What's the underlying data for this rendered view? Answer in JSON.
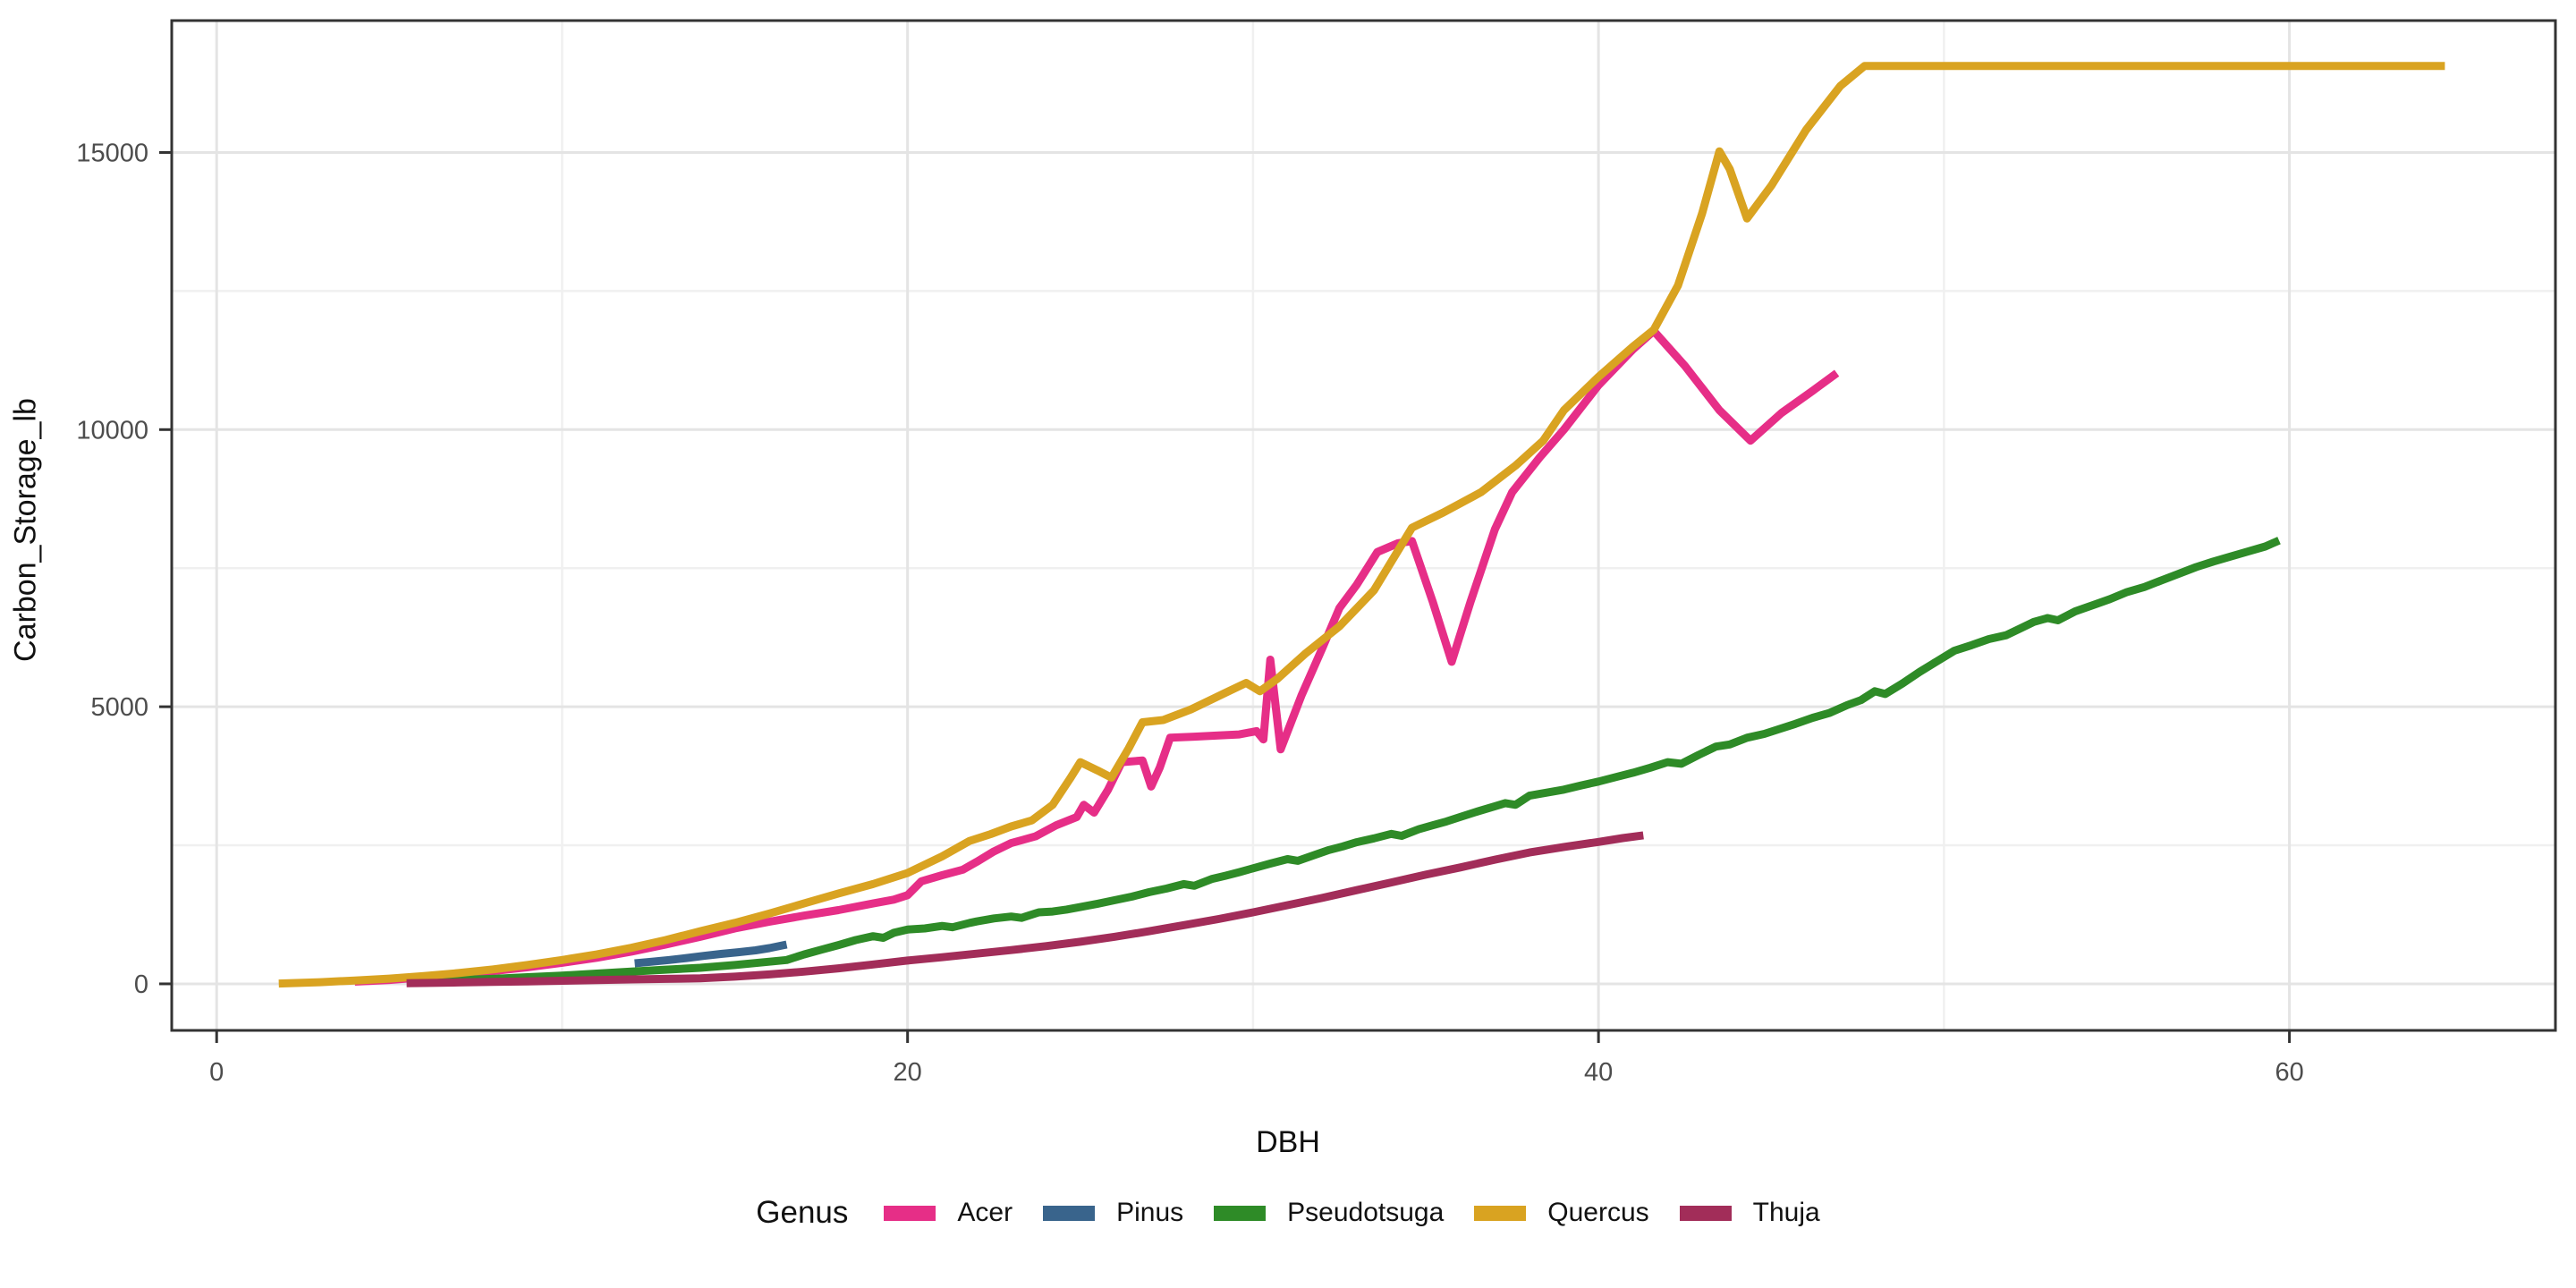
{
  "chart_data": {
    "type": "line",
    "title": "",
    "xlabel": "DBH",
    "ylabel": "Carbon_Storage_lb",
    "legend_title": "Genus",
    "legend_position": "bottom",
    "grid": true,
    "xlim": [
      -1.3,
      67.7
    ],
    "ylim": [
      -840,
      17380
    ],
    "x_ticks": [
      0,
      20,
      40,
      60
    ],
    "x_minor_ticks": [
      10,
      30,
      50
    ],
    "y_ticks": [
      0,
      5000,
      10000,
      15000
    ],
    "y_minor_ticks": [
      2500,
      7500,
      12500
    ],
    "series": [
      {
        "name": "Acer",
        "color": "#E62E87",
        "points": [
          [
            4,
            40
          ],
          [
            5,
            70
          ],
          [
            6,
            120
          ],
          [
            7,
            170
          ],
          [
            8,
            230
          ],
          [
            9,
            300
          ],
          [
            10,
            380
          ],
          [
            11,
            470
          ],
          [
            12,
            580
          ],
          [
            13,
            710
          ],
          [
            14,
            850
          ],
          [
            15,
            1000
          ],
          [
            16,
            1120
          ],
          [
            17,
            1230
          ],
          [
            18,
            1330
          ],
          [
            19,
            1450
          ],
          [
            19.6,
            1520
          ],
          [
            20,
            1600
          ],
          [
            20.4,
            1850
          ],
          [
            21,
            1960
          ],
          [
            21.6,
            2060
          ],
          [
            22,
            2200
          ],
          [
            22.5,
            2390
          ],
          [
            23,
            2540
          ],
          [
            23.7,
            2660
          ],
          [
            24.3,
            2860
          ],
          [
            24.9,
            3010
          ],
          [
            25.1,
            3230
          ],
          [
            25.4,
            3090
          ],
          [
            25.8,
            3500
          ],
          [
            26.2,
            4000
          ],
          [
            26.8,
            4030
          ],
          [
            27.05,
            3560
          ],
          [
            27.3,
            3900
          ],
          [
            27.6,
            4440
          ],
          [
            28.3,
            4460
          ],
          [
            29,
            4480
          ],
          [
            29.6,
            4500
          ],
          [
            30.1,
            4560
          ],
          [
            30.3,
            4410
          ],
          [
            30.5,
            5850
          ],
          [
            30.8,
            4230
          ],
          [
            31.4,
            5200
          ],
          [
            32,
            6050
          ],
          [
            32.5,
            6780
          ],
          [
            33,
            7200
          ],
          [
            33.6,
            7790
          ],
          [
            34.2,
            7950
          ],
          [
            34.6,
            7990
          ],
          [
            35.2,
            6900
          ],
          [
            35.75,
            5810
          ],
          [
            36.3,
            6900
          ],
          [
            37,
            8200
          ],
          [
            37.5,
            8870
          ],
          [
            38.3,
            9500
          ],
          [
            39,
            10000
          ],
          [
            40,
            10800
          ],
          [
            41,
            11450
          ],
          [
            41.6,
            11780
          ],
          [
            42.5,
            11150
          ],
          [
            43.5,
            10350
          ],
          [
            44.4,
            9800
          ],
          [
            45.3,
            10300
          ],
          [
            46.2,
            10700
          ],
          [
            46.9,
            11020
          ]
        ]
      },
      {
        "name": "Pinus",
        "color": "#39648C",
        "points": [
          [
            12.1,
            370
          ],
          [
            12.6,
            400
          ],
          [
            13.1,
            430
          ],
          [
            13.6,
            465
          ],
          [
            14.1,
            505
          ],
          [
            14.6,
            540
          ],
          [
            15.1,
            570
          ],
          [
            15.6,
            605
          ],
          [
            16,
            645
          ],
          [
            16.5,
            710
          ]
        ]
      },
      {
        "name": "Pseudotsuga",
        "color": "#2E8B27",
        "points": [
          [
            6,
            50
          ],
          [
            7,
            70
          ],
          [
            8,
            90
          ],
          [
            9,
            120
          ],
          [
            10,
            150
          ],
          [
            11,
            185
          ],
          [
            12,
            220
          ],
          [
            13,
            255
          ],
          [
            14,
            290
          ],
          [
            15,
            340
          ],
          [
            16,
            400
          ],
          [
            16.5,
            430
          ],
          [
            17,
            530
          ],
          [
            17.5,
            615
          ],
          [
            18,
            700
          ],
          [
            18.5,
            790
          ],
          [
            19,
            860
          ],
          [
            19.3,
            830
          ],
          [
            19.6,
            920
          ],
          [
            20,
            980
          ],
          [
            20.5,
            1000
          ],
          [
            21,
            1045
          ],
          [
            21.3,
            1020
          ],
          [
            21.8,
            1100
          ],
          [
            22,
            1125
          ],
          [
            22.5,
            1180
          ],
          [
            23,
            1215
          ],
          [
            23.3,
            1190
          ],
          [
            23.8,
            1290
          ],
          [
            24.2,
            1305
          ],
          [
            24.6,
            1340
          ],
          [
            25,
            1385
          ],
          [
            25.5,
            1445
          ],
          [
            26,
            1510
          ],
          [
            26.5,
            1575
          ],
          [
            27,
            1655
          ],
          [
            27.5,
            1720
          ],
          [
            28,
            1800
          ],
          [
            28.3,
            1770
          ],
          [
            28.8,
            1890
          ],
          [
            29.2,
            1950
          ],
          [
            29.6,
            2015
          ],
          [
            30,
            2085
          ],
          [
            30.5,
            2170
          ],
          [
            31,
            2250
          ],
          [
            31.3,
            2220
          ],
          [
            31.8,
            2330
          ],
          [
            32.2,
            2415
          ],
          [
            32.6,
            2480
          ],
          [
            33,
            2555
          ],
          [
            33.5,
            2625
          ],
          [
            34,
            2705
          ],
          [
            34.3,
            2670
          ],
          [
            34.8,
            2790
          ],
          [
            35.2,
            2860
          ],
          [
            35.6,
            2930
          ],
          [
            36,
            3010
          ],
          [
            36.5,
            3110
          ],
          [
            37,
            3205
          ],
          [
            37.3,
            3260
          ],
          [
            37.6,
            3230
          ],
          [
            38,
            3395
          ],
          [
            38.5,
            3450
          ],
          [
            39,
            3505
          ],
          [
            39.5,
            3580
          ],
          [
            40,
            3650
          ],
          [
            40.5,
            3730
          ],
          [
            41,
            3810
          ],
          [
            41.5,
            3900
          ],
          [
            42,
            4000
          ],
          [
            42.4,
            3970
          ],
          [
            42.9,
            4130
          ],
          [
            43.4,
            4280
          ],
          [
            43.8,
            4320
          ],
          [
            44.3,
            4440
          ],
          [
            44.8,
            4510
          ],
          [
            45.2,
            4590
          ],
          [
            45.7,
            4690
          ],
          [
            46.2,
            4800
          ],
          [
            46.7,
            4890
          ],
          [
            47.2,
            5030
          ],
          [
            47.6,
            5120
          ],
          [
            48,
            5280
          ],
          [
            48.3,
            5230
          ],
          [
            48.8,
            5420
          ],
          [
            49.3,
            5630
          ],
          [
            49.8,
            5820
          ],
          [
            50.3,
            6010
          ],
          [
            50.8,
            6110
          ],
          [
            51.3,
            6220
          ],
          [
            51.8,
            6290
          ],
          [
            52.2,
            6410
          ],
          [
            52.6,
            6530
          ],
          [
            53,
            6600
          ],
          [
            53.3,
            6560
          ],
          [
            53.8,
            6720
          ],
          [
            54.3,
            6830
          ],
          [
            54.8,
            6940
          ],
          [
            55.3,
            7070
          ],
          [
            55.8,
            7160
          ],
          [
            56.3,
            7280
          ],
          [
            56.8,
            7400
          ],
          [
            57.3,
            7520
          ],
          [
            57.8,
            7620
          ],
          [
            58.3,
            7710
          ],
          [
            58.8,
            7800
          ],
          [
            59.3,
            7890
          ],
          [
            59.7,
            8000
          ]
        ]
      },
      {
        "name": "Quercus",
        "color": "#D9A321",
        "points": [
          [
            1.8,
            5
          ],
          [
            3,
            30
          ],
          [
            4,
            60
          ],
          [
            5,
            95
          ],
          [
            6,
            140
          ],
          [
            7,
            195
          ],
          [
            8,
            260
          ],
          [
            9,
            340
          ],
          [
            10,
            430
          ],
          [
            11,
            530
          ],
          [
            12,
            650
          ],
          [
            13,
            790
          ],
          [
            14,
            950
          ],
          [
            15,
            1100
          ],
          [
            16,
            1270
          ],
          [
            17,
            1450
          ],
          [
            18,
            1630
          ],
          [
            19,
            1800
          ],
          [
            20,
            2000
          ],
          [
            21,
            2300
          ],
          [
            21.8,
            2580
          ],
          [
            22.4,
            2700
          ],
          [
            23,
            2840
          ],
          [
            23.6,
            2950
          ],
          [
            24.2,
            3230
          ],
          [
            24.7,
            3700
          ],
          [
            25,
            4000
          ],
          [
            25.5,
            3850
          ],
          [
            25.9,
            3720
          ],
          [
            26.4,
            4250
          ],
          [
            26.8,
            4720
          ],
          [
            27.4,
            4760
          ],
          [
            28.2,
            4950
          ],
          [
            29.2,
            5250
          ],
          [
            29.8,
            5430
          ],
          [
            30.2,
            5280
          ],
          [
            30.7,
            5500
          ],
          [
            31.5,
            5950
          ],
          [
            32.5,
            6450
          ],
          [
            33.5,
            7100
          ],
          [
            34.6,
            8230
          ],
          [
            35.5,
            8500
          ],
          [
            36.6,
            8870
          ],
          [
            37.6,
            9350
          ],
          [
            38.4,
            9800
          ],
          [
            39,
            10350
          ],
          [
            40,
            10950
          ],
          [
            41,
            11500
          ],
          [
            41.6,
            11800
          ],
          [
            42.3,
            12600
          ],
          [
            43,
            13900
          ],
          [
            43.5,
            15020
          ],
          [
            43.8,
            14700
          ],
          [
            44.3,
            13810
          ],
          [
            45,
            14400
          ],
          [
            46,
            15400
          ],
          [
            47,
            16200
          ],
          [
            47.7,
            16560
          ],
          [
            50,
            16560
          ],
          [
            55,
            16560
          ],
          [
            60,
            16560
          ],
          [
            64.5,
            16560
          ]
        ]
      },
      {
        "name": "Thuja",
        "color": "#A22D59",
        "points": [
          [
            5.5,
            10
          ],
          [
            6,
            15
          ],
          [
            7,
            25
          ],
          [
            8,
            35
          ],
          [
            9,
            45
          ],
          [
            10,
            55
          ],
          [
            11,
            68
          ],
          [
            12,
            80
          ],
          [
            13,
            90
          ],
          [
            14,
            100
          ],
          [
            15,
            130
          ],
          [
            16,
            170
          ],
          [
            17,
            220
          ],
          [
            18,
            280
          ],
          [
            19,
            350
          ],
          [
            20,
            420
          ],
          [
            21,
            480
          ],
          [
            22,
            545
          ],
          [
            23,
            610
          ],
          [
            24,
            680
          ],
          [
            25,
            760
          ],
          [
            26,
            850
          ],
          [
            27,
            950
          ],
          [
            28,
            1060
          ],
          [
            29,
            1170
          ],
          [
            30,
            1290
          ],
          [
            31,
            1420
          ],
          [
            32,
            1550
          ],
          [
            33,
            1690
          ],
          [
            34,
            1830
          ],
          [
            35,
            1970
          ],
          [
            36,
            2100
          ],
          [
            37,
            2240
          ],
          [
            38,
            2370
          ],
          [
            39,
            2470
          ],
          [
            40,
            2560
          ],
          [
            40.7,
            2630
          ],
          [
            41.3,
            2680
          ]
        ]
      }
    ]
  }
}
